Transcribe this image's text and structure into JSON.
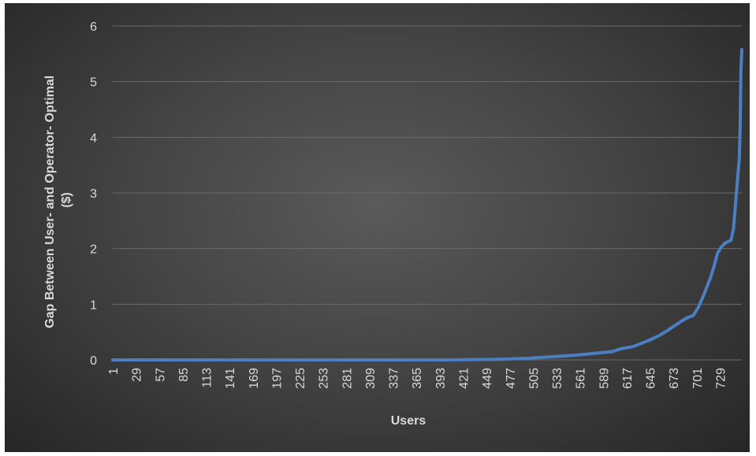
{
  "chart_data": {
    "type": "line",
    "title": "",
    "xlabel": "Users",
    "ylabel_lines": [
      "Gap Between User- and Operator- Optimal",
      "($)"
    ],
    "ylim": [
      0,
      6
    ],
    "y_ticks": [
      0,
      1,
      2,
      3,
      4,
      5,
      6
    ],
    "x_range": [
      1,
      755
    ],
    "x_tick_labels": [
      "1",
      "29",
      "57",
      "85",
      "113",
      "141",
      "169",
      "197",
      "225",
      "253",
      "281",
      "309",
      "337",
      "365",
      "393",
      "421",
      "449",
      "477",
      "505",
      "533",
      "561",
      "589",
      "617",
      "645",
      "673",
      "701",
      "729"
    ],
    "grid": true,
    "legend": "none",
    "series_color": "#4a7fc4",
    "series": [
      {
        "points": [
          [
            1,
            0.0
          ],
          [
            100,
            0.0
          ],
          [
            200,
            0.0
          ],
          [
            300,
            0.0
          ],
          [
            400,
            0.0
          ],
          [
            430,
            0.005
          ],
          [
            460,
            0.01
          ],
          [
            480,
            0.02
          ],
          [
            500,
            0.03
          ],
          [
            520,
            0.05
          ],
          [
            540,
            0.07
          ],
          [
            560,
            0.09
          ],
          [
            580,
            0.12
          ],
          [
            600,
            0.15
          ],
          [
            610,
            0.2
          ],
          [
            625,
            0.24
          ],
          [
            635,
            0.3
          ],
          [
            645,
            0.36
          ],
          [
            655,
            0.43
          ],
          [
            665,
            0.52
          ],
          [
            675,
            0.62
          ],
          [
            683,
            0.7
          ],
          [
            690,
            0.76
          ],
          [
            697,
            0.8
          ],
          [
            703,
            0.95
          ],
          [
            708,
            1.12
          ],
          [
            713,
            1.3
          ],
          [
            718,
            1.5
          ],
          [
            722,
            1.7
          ],
          [
            726,
            1.92
          ],
          [
            730,
            2.02
          ],
          [
            735,
            2.1
          ],
          [
            742,
            2.15
          ],
          [
            745,
            2.35
          ],
          [
            748,
            2.9
          ],
          [
            751,
            3.45
          ],
          [
            752,
            3.6
          ],
          [
            753,
            4.2
          ],
          [
            754,
            5.2
          ],
          [
            755,
            5.58
          ]
        ]
      }
    ]
  }
}
